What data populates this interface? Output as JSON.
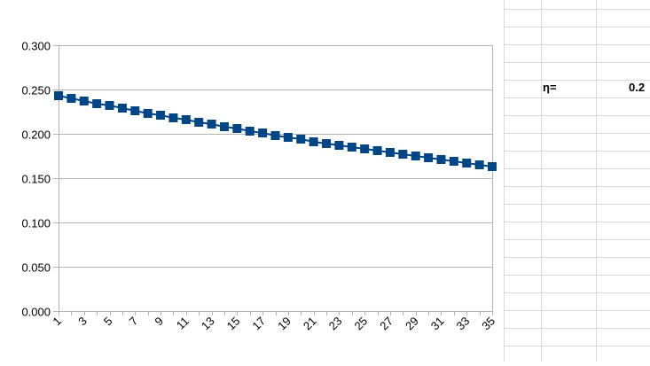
{
  "chart_data": {
    "type": "line",
    "title": "",
    "xlabel": "",
    "ylabel": "",
    "x": [
      1,
      2,
      3,
      4,
      5,
      6,
      7,
      8,
      9,
      10,
      11,
      12,
      13,
      14,
      15,
      16,
      17,
      18,
      19,
      20,
      21,
      22,
      23,
      24,
      25,
      26,
      27,
      28,
      29,
      30,
      31,
      32,
      33,
      34,
      35
    ],
    "x_tick_labels": [
      "1",
      "3",
      "5",
      "7",
      "9",
      "11",
      "13",
      "15",
      "17",
      "19",
      "21",
      "23",
      "25",
      "27",
      "29",
      "31",
      "33",
      "35"
    ],
    "y_tick_labels": [
      "0.000",
      "0.050",
      "0.100",
      "0.150",
      "0.200",
      "0.250",
      "0.300"
    ],
    "ylim": [
      0,
      0.3
    ],
    "y_ticks": [
      0,
      0.05,
      0.1,
      0.15,
      0.2,
      0.25,
      0.3
    ],
    "grid": true,
    "legend": "none",
    "series": [
      {
        "color": "#004586",
        "marker": "square",
        "values": [
          0.243,
          0.24,
          0.237,
          0.234,
          0.232,
          0.229,
          0.226,
          0.223,
          0.221,
          0.218,
          0.216,
          0.213,
          0.211,
          0.208,
          0.206,
          0.203,
          0.201,
          0.198,
          0.196,
          0.194,
          0.191,
          0.189,
          0.187,
          0.185,
          0.183,
          0.181,
          0.179,
          0.177,
          0.175,
          0.173,
          0.171,
          0.169,
          0.167,
          0.165,
          0.163
        ]
      }
    ]
  },
  "cells": {
    "eta_label": "η=",
    "eta_value": "0.2"
  }
}
